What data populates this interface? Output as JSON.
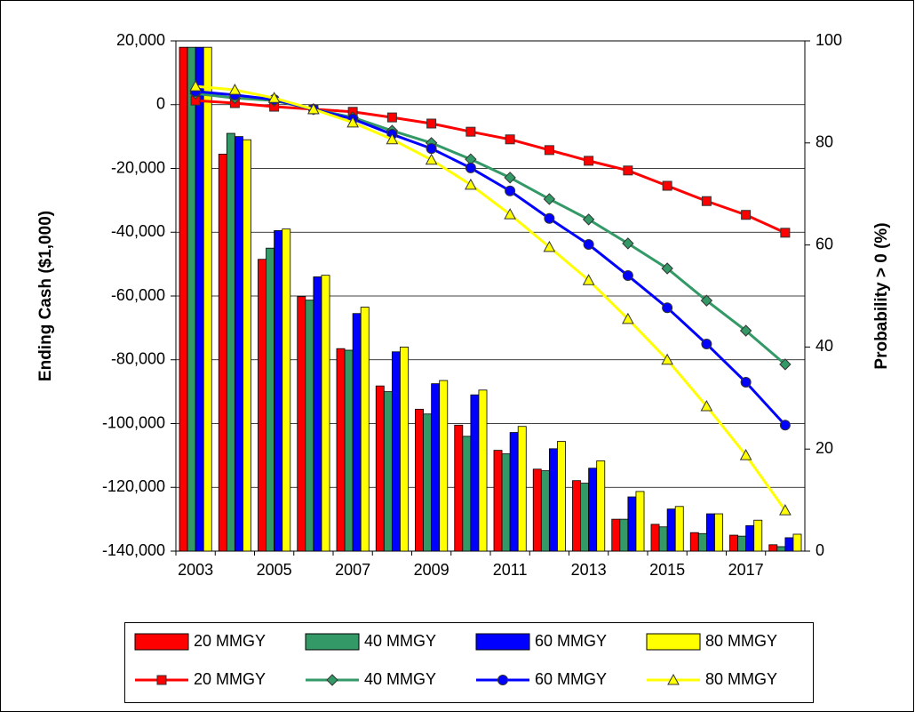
{
  "chart_data": {
    "type": "combo",
    "categories": [
      "2003",
      null,
      "2005",
      null,
      "2007",
      null,
      "2009",
      null,
      "2011",
      null,
      "2013",
      null,
      "2015",
      null,
      "2017",
      null
    ],
    "ylabel": "Ending Cash ($1,000)",
    "y2label": "Probability > 0 (%)",
    "ylim": [
      -140000,
      20000
    ],
    "yticks": [
      {
        "value": -140000,
        "label": "-140,000"
      },
      {
        "value": -120000,
        "label": "-120,000"
      },
      {
        "value": -100000,
        "label": "-100,000"
      },
      {
        "value": -80000,
        "label": "-80,000"
      },
      {
        "value": -60000,
        "label": "-60,000"
      },
      {
        "value": -40000,
        "label": "-40,000"
      },
      {
        "value": -20000,
        "label": "-20,000"
      },
      0,
      {
        "value": 20000,
        "label": "20,000"
      }
    ],
    "y2lim": [
      0,
      100
    ],
    "y2ticks": [
      0,
      20,
      40,
      60,
      80,
      100
    ],
    "grid": true,
    "legend": "bottom",
    "series": [
      {
        "name": "20 MMGY",
        "type": "bar",
        "color": "#ff0000",
        "values": [
          18000,
          -15500,
          -48500,
          -60200,
          -76500,
          -88200,
          -95500,
          -100500,
          -108400,
          -114300,
          -117900,
          -130000,
          -131600,
          -134200,
          -135000,
          -138000
        ]
      },
      {
        "name": "40 MMGY",
        "type": "bar",
        "color": "#339966",
        "values": [
          18000,
          -9000,
          -45000,
          -61300,
          -77000,
          -90000,
          -97000,
          -104000,
          -109500,
          -114800,
          -118700,
          -130000,
          -132400,
          -134500,
          -135300,
          -138600
        ]
      },
      {
        "name": "60 MMGY",
        "type": "bar",
        "color": "#0000ff",
        "values": [
          18000,
          -10000,
          -39500,
          -54000,
          -65500,
          -77500,
          -87500,
          -91000,
          -102800,
          -107900,
          -114000,
          -123000,
          -126800,
          -128300,
          -132000,
          -135800
        ]
      },
      {
        "name": "80 MMGY",
        "type": "bar",
        "color": "#ffff00",
        "values": [
          18000,
          -11000,
          -39000,
          -53500,
          -63500,
          -76000,
          -86500,
          -89500,
          -100900,
          -105600,
          -111700,
          -121300,
          -126000,
          -128300,
          -130300,
          -134700
        ]
      },
      {
        "name": "20 MMGY",
        "type": "line",
        "axis": "y2",
        "marker": "square",
        "color": "#ff0000",
        "values": [
          88.3,
          87.8,
          87.1,
          86.6,
          86.1,
          85.0,
          83.8,
          82.2,
          80.7,
          78.6,
          76.5,
          74.6,
          71.6,
          68.6,
          65.9,
          62.4
        ]
      },
      {
        "name": "40 MMGY",
        "type": "line",
        "axis": "y2",
        "marker": "diamond",
        "color": "#339966",
        "values": [
          89.7,
          88.8,
          88.3,
          86.6,
          85.0,
          82.4,
          80.0,
          76.8,
          73.2,
          69.0,
          65.0,
          60.3,
          55.4,
          49.1,
          43.2,
          36.6
        ]
      },
      {
        "name": "60 MMGY",
        "type": "line",
        "axis": "y2",
        "marker": "circle",
        "color": "#0000ff",
        "values": [
          90.1,
          89.4,
          88.5,
          86.6,
          84.7,
          81.7,
          78.9,
          75.1,
          70.6,
          65.2,
          60.1,
          54.0,
          47.7,
          40.6,
          33.1,
          24.7
        ]
      },
      {
        "name": "80 MMGY",
        "type": "line",
        "axis": "y2",
        "marker": "triangle",
        "color": "#ffff00",
        "values": [
          91.1,
          90.4,
          88.8,
          86.6,
          84.0,
          80.7,
          76.7,
          71.8,
          66.0,
          59.6,
          53.1,
          45.5,
          37.5,
          28.4,
          18.8,
          8.0
        ]
      }
    ]
  }
}
